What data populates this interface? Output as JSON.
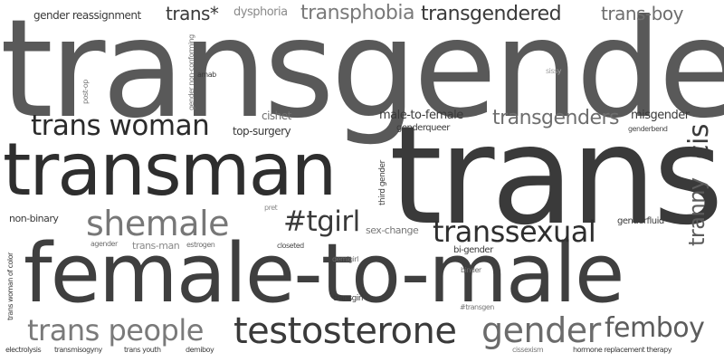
{
  "words": {
    "transgender": "transgender",
    "trans": "trans",
    "transman": "transman",
    "female_to_male": "female-to-male",
    "trans_woman": "trans woman",
    "shemale": "shemale",
    "tgirl": "#tgirl",
    "transsexual": "transsexual",
    "testosterone": "testosterone",
    "trans_people": "trans people",
    "gender": "gender",
    "femboy": "femboy",
    "tranny": "tranny",
    "cis": "cis",
    "transgenders": "transgenders",
    "transphobia": "transphobia",
    "transgendered": "transgendered",
    "trans_boy": "trans-boy",
    "trans_star": "trans*",
    "gender_reassignment": "gender reassignment",
    "dysphoria": "dysphoria",
    "misgender": "misgender",
    "genderbend": "genderbend",
    "sissy": "sissy",
    "amab": "amab",
    "post_op": "post-op",
    "gender_non_conforming": "gender non-conforming",
    "cishet": "cishet",
    "top_surgery": "top-surgery",
    "male_to_female": "male-to-female",
    "genderqueer": "genderqueer",
    "third_gender": "third gender",
    "non_binary": "non-binary",
    "pret": "pret",
    "sex_change": "sex-change",
    "genderfluid": "genderfluid",
    "agender": "agender",
    "trans_man": "trans-man",
    "estrogen": "estrogen",
    "closeted": "closeted",
    "bi_gender": "bi-gender",
    "demigirl": "demigirl",
    "binder": "binder",
    "transgirl": "transgirl",
    "transgen": "#transgen",
    "trans_woman_of_color": "trans woman of color",
    "electrolysis": "electrolysis",
    "transmisogyny": "transmisogyny",
    "trans_youth": "trans youth",
    "demiboy": "demiboy",
    "cissexism": "cissexism",
    "hormone_replacement_therapy": "hormone replacement therapy"
  },
  "colors": {
    "darkest": "#2b2b2b",
    "dark": "#383838",
    "mid": "#4a4a4a",
    "medium": "#5c5c5c",
    "light": "#6e6e6e",
    "lighter": "#8a8a8a",
    "faint": "#a6a6a6"
  }
}
